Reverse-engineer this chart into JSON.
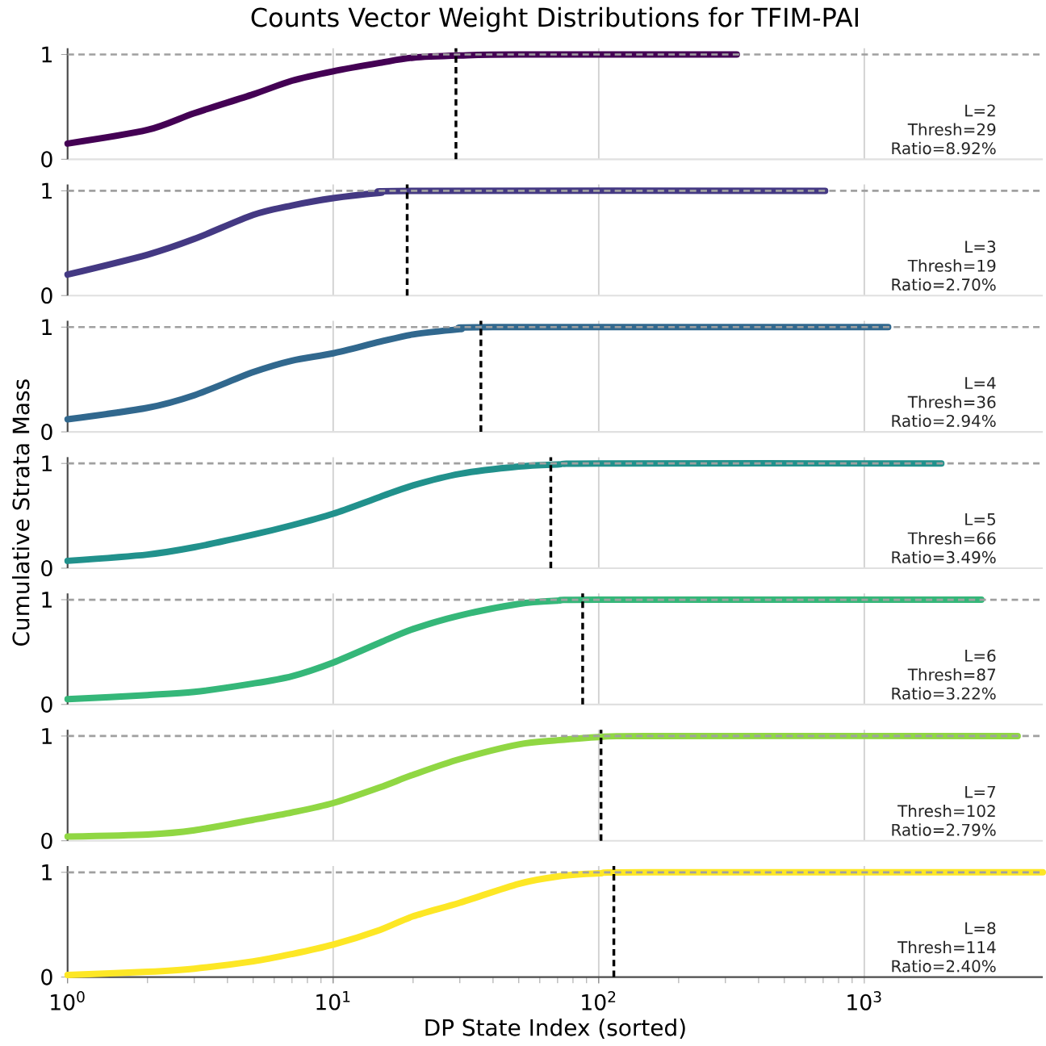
{
  "chart_data": [
    {
      "type": "line",
      "title": "Counts Vector Weight Distributions for TFIM-PAI",
      "log": "x",
      "grid": "x",
      "marker": "none",
      "tick_labels": "y",
      "xlim": [
        1,
        4700
      ],
      "ylim": [
        0,
        1.06
      ],
      "xticks": [
        1,
        10,
        100,
        1000
      ],
      "yticks": [
        0,
        1
      ],
      "series": [
        {
          "color": "#440154",
          "x": [
            1,
            2,
            3,
            5,
            7,
            10,
            15,
            20,
            30,
            50,
            331
          ],
          "values": [
            0.15,
            0.28,
            0.44,
            0.62,
            0.75,
            0.84,
            0.92,
            0.97,
            0.99,
            1.0,
            1.0
          ]
        }
      ],
      "ref_lines": [
        {
          "axis": "y",
          "value": 1,
          "color": "#a0a0a0",
          "line_style": "dashed"
        },
        {
          "axis": "x",
          "value": 29,
          "color": "#000000",
          "line_style": "dashed"
        }
      ],
      "annotations": [
        "L=2",
        "Thresh=29",
        "Ratio=8.92%"
      ]
    },
    {
      "type": "line",
      "log": "x",
      "grid": "x",
      "marker": "none",
      "tick_labels": "y",
      "xlim": [
        1,
        4700
      ],
      "ylim": [
        0,
        1.06
      ],
      "xticks": [
        1,
        10,
        100,
        1000
      ],
      "yticks": [
        0,
        1
      ],
      "series": [
        {
          "color": "#443983",
          "x": [
            1,
            2,
            3,
            5,
            7,
            10,
            15,
            20,
            712
          ],
          "values": [
            0.2,
            0.39,
            0.54,
            0.77,
            0.86,
            0.93,
            0.98,
            1.0,
            1.0
          ]
        }
      ],
      "ref_lines": [
        {
          "axis": "y",
          "value": 1,
          "color": "#a0a0a0",
          "line_style": "dashed"
        },
        {
          "axis": "x",
          "value": 19,
          "color": "#000000",
          "line_style": "dashed"
        }
      ],
      "annotations": [
        "L=3",
        "Thresh=19",
        "Ratio=2.70%"
      ]
    },
    {
      "type": "line",
      "log": "x",
      "grid": "x",
      "marker": "none",
      "tick_labels": "y",
      "xlim": [
        1,
        4700
      ],
      "ylim": [
        0,
        1.06
      ],
      "xticks": [
        1,
        10,
        100,
        1000
      ],
      "yticks": [
        0,
        1
      ],
      "series": [
        {
          "color": "#31688e",
          "x": [
            1,
            2,
            3,
            5,
            7,
            10,
            15,
            20,
            30,
            40,
            1230
          ],
          "values": [
            0.12,
            0.23,
            0.35,
            0.57,
            0.68,
            0.75,
            0.86,
            0.93,
            0.98,
            1.0,
            1.0
          ]
        }
      ],
      "ref_lines": [
        {
          "axis": "y",
          "value": 1,
          "color": "#a0a0a0",
          "line_style": "dashed"
        },
        {
          "axis": "x",
          "value": 36,
          "color": "#000000",
          "line_style": "dashed"
        }
      ],
      "annotations": [
        "L=4",
        "Thresh=36",
        "Ratio=2.94%"
      ]
    },
    {
      "type": "line",
      "ylabel": "Cumulative Strata Mass",
      "log": "x",
      "grid": "x",
      "marker": "none",
      "tick_labels": "y",
      "xlim": [
        1,
        4700
      ],
      "ylim": [
        0,
        1.06
      ],
      "xticks": [
        1,
        10,
        100,
        1000
      ],
      "yticks": [
        0,
        1
      ],
      "series": [
        {
          "color": "#21918c",
          "x": [
            1,
            2,
            3,
            5,
            7,
            10,
            15,
            20,
            30,
            50,
            70,
            100,
            1950
          ],
          "values": [
            0.07,
            0.13,
            0.2,
            0.32,
            0.41,
            0.52,
            0.68,
            0.79,
            0.9,
            0.97,
            0.99,
            1.0,
            1.0
          ]
        }
      ],
      "ref_lines": [
        {
          "axis": "y",
          "value": 1,
          "color": "#a0a0a0",
          "line_style": "dashed"
        },
        {
          "axis": "x",
          "value": 66,
          "color": "#000000",
          "line_style": "dashed"
        }
      ],
      "annotations": [
        "L=5",
        "Thresh=66",
        "Ratio=3.49%"
      ]
    },
    {
      "type": "line",
      "log": "x",
      "grid": "x",
      "marker": "none",
      "tick_labels": "y",
      "xlim": [
        1,
        4700
      ],
      "ylim": [
        0,
        1.06
      ],
      "xticks": [
        1,
        10,
        100,
        1000
      ],
      "yticks": [
        0,
        1
      ],
      "series": [
        {
          "color": "#35b779",
          "x": [
            1,
            2,
            3,
            5,
            7,
            10,
            15,
            20,
            30,
            50,
            70,
            100,
            2760
          ],
          "values": [
            0.05,
            0.09,
            0.12,
            0.2,
            0.27,
            0.4,
            0.59,
            0.72,
            0.85,
            0.96,
            0.99,
            1.0,
            1.0
          ]
        }
      ],
      "ref_lines": [
        {
          "axis": "y",
          "value": 1,
          "color": "#a0a0a0",
          "line_style": "dashed"
        },
        {
          "axis": "x",
          "value": 87,
          "color": "#000000",
          "line_style": "dashed"
        }
      ],
      "annotations": [
        "L=6",
        "Thresh=87",
        "Ratio=3.22%"
      ]
    },
    {
      "type": "line",
      "log": "x",
      "grid": "x",
      "marker": "none",
      "tick_labels": "y",
      "xlim": [
        1,
        4700
      ],
      "ylim": [
        0,
        1.06
      ],
      "xticks": [
        1,
        10,
        100,
        1000
      ],
      "yticks": [
        0,
        1
      ],
      "series": [
        {
          "color": "#90d743",
          "x": [
            1,
            2,
            3,
            5,
            7,
            10,
            15,
            20,
            30,
            50,
            70,
            100,
            150,
            3780
          ],
          "values": [
            0.04,
            0.06,
            0.1,
            0.2,
            0.27,
            0.36,
            0.51,
            0.63,
            0.78,
            0.92,
            0.96,
            0.99,
            1.0,
            1.0
          ]
        }
      ],
      "ref_lines": [
        {
          "axis": "y",
          "value": 1,
          "color": "#a0a0a0",
          "line_style": "dashed"
        },
        {
          "axis": "x",
          "value": 102,
          "color": "#000000",
          "line_style": "dashed"
        }
      ],
      "annotations": [
        "L=7",
        "Thresh=102",
        "Ratio=2.79%"
      ]
    },
    {
      "type": "line",
      "xlabel": "DP State Index (sorted)",
      "log": "x",
      "grid": "x",
      "marker": "none",
      "xlim": [
        1,
        4700
      ],
      "ylim": [
        0,
        1.06
      ],
      "xticks": [
        {
          "value": 1,
          "label": "10$^{0}$"
        },
        {
          "value": 10,
          "label": "10$^{1}$"
        },
        {
          "value": 100,
          "label": "10$^{2}$"
        },
        {
          "value": 1000,
          "label": "10$^{3}$"
        }
      ],
      "yticks": [
        0,
        1
      ],
      "series": [
        {
          "color": "#fde725",
          "x": [
            1,
            2,
            3,
            5,
            7,
            10,
            15,
            20,
            30,
            50,
            70,
            100,
            150,
            4700
          ],
          "values": [
            0.02,
            0.05,
            0.08,
            0.15,
            0.22,
            0.31,
            0.45,
            0.58,
            0.71,
            0.89,
            0.96,
            0.99,
            1.0,
            1.0
          ]
        }
      ],
      "ref_lines": [
        {
          "axis": "y",
          "value": 1,
          "color": "#a0a0a0",
          "line_style": "dashed"
        },
        {
          "axis": "x",
          "value": 114,
          "color": "#000000",
          "line_style": "dashed"
        }
      ],
      "annotations": [
        "L=8",
        "Thresh=114",
        "Ratio=2.40%"
      ]
    }
  ]
}
